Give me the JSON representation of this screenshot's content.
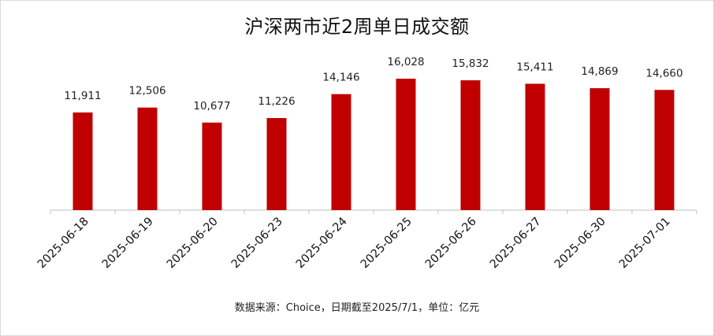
{
  "chart_data": {
    "type": "bar",
    "title": "沪深两市近2周单日成交额",
    "source_note": "数据来源：Choice，日期截至2025/7/1，单位：亿元",
    "categories": [
      "2025-06-18",
      "2025-06-19",
      "2025-06-20",
      "2025-06-23",
      "2025-06-24",
      "2025-06-25",
      "2025-06-26",
      "2025-06-27",
      "2025-06-30",
      "2025-07-01"
    ],
    "values": [
      11911,
      12506,
      10677,
      11226,
      14146,
      16028,
      15832,
      15411,
      14869,
      14660
    ],
    "data_labels": [
      "11,911",
      "12,506",
      "10,677",
      "11,226",
      "14,146",
      "16,028",
      "15,832",
      "15,411",
      "14,869",
      "14,660"
    ],
    "ylim": [
      0,
      18000
    ],
    "grid": false,
    "legend": "none",
    "colors": {
      "bar": "#C00000",
      "axis": "#bfbfbf"
    }
  }
}
